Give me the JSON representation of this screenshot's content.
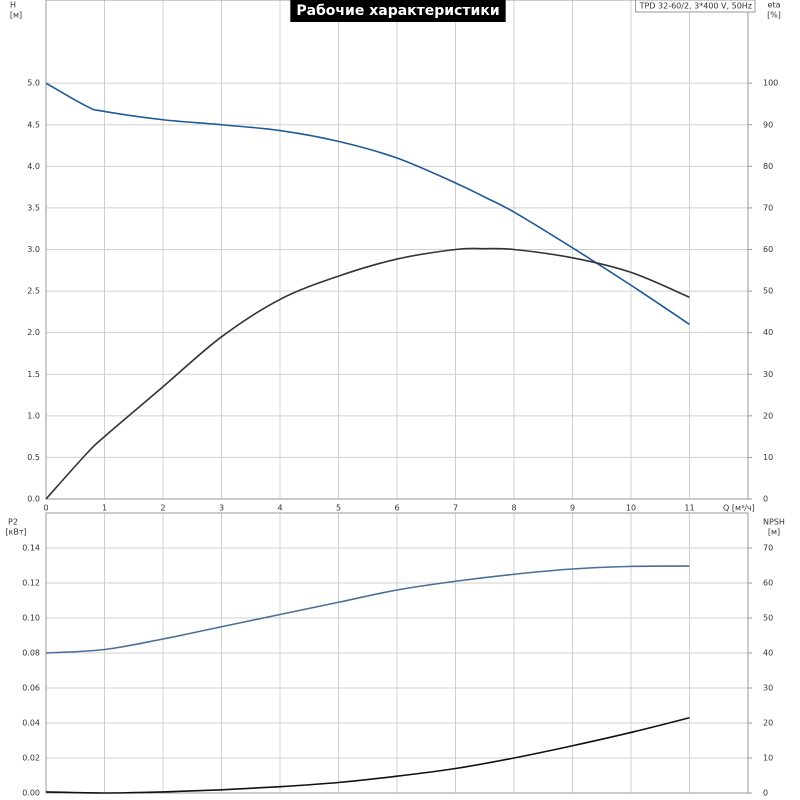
{
  "chart_data": [
    {
      "type": "line",
      "title": "Рабочие характеристики",
      "model": "TPD 32-60/2, 3*400 V, 50Hz",
      "ylabel": "H",
      "yunit": "[м]",
      "y2label": "eta",
      "y2unit": "[%]",
      "xlabel": "Q [м³/ч]",
      "x": [
        0,
        0.7,
        1,
        2,
        3,
        4,
        5,
        6,
        7,
        7.5,
        8,
        9,
        10,
        11
      ],
      "series": [
        {
          "name": "H",
          "color": "#1f5a96",
          "values": [
            5.0,
            4.72,
            4.66,
            4.56,
            4.5,
            4.43,
            4.3,
            4.1,
            3.8,
            3.63,
            3.45,
            3.02,
            2.57,
            2.1
          ]
        },
        {
          "name": "eta",
          "color": "#333333",
          "axis": "y2",
          "values": [
            0,
            11,
            15,
            27,
            39,
            48,
            53.6,
            57.7,
            60,
            60.2,
            60,
            58,
            54.5,
            48.5
          ]
        }
      ],
      "xlim": [
        0,
        12
      ],
      "xticks": [
        0,
        1,
        2,
        3,
        4,
        5,
        6,
        7,
        8,
        9,
        10,
        11
      ],
      "ylim": [
        0,
        6
      ],
      "yticks": [
        {
          "value": 0,
          "label": "0.0"
        },
        {
          "value": 0.5,
          "label": "0.5"
        },
        {
          "value": 1,
          "label": "1.0"
        },
        {
          "value": 1.5,
          "label": "1.5"
        },
        {
          "value": 2,
          "label": "2.0"
        },
        {
          "value": 2.5,
          "label": "2.5"
        },
        {
          "value": 3,
          "label": "3.0"
        },
        {
          "value": 3.5,
          "label": "3.5"
        },
        {
          "value": 4,
          "label": "4.0"
        },
        {
          "value": 4.5,
          "label": "4.5"
        },
        {
          "value": 5,
          "label": "5.0"
        }
      ],
      "y2lim": [
        0,
        120
      ],
      "y2ticks": [
        0,
        10,
        20,
        30,
        40,
        50,
        60,
        70,
        80,
        90,
        100
      ],
      "grid": true
    },
    {
      "type": "line",
      "ylabel": "P2",
      "yunit": "[кВт]",
      "y2label": "NPSH",
      "y2unit": "[м]",
      "x": [
        0,
        1,
        2,
        3,
        4,
        5,
        6,
        7,
        8,
        9,
        10,
        11
      ],
      "series": [
        {
          "name": "P2",
          "color": "#4a6f96",
          "values": [
            0.08,
            0.082,
            0.088,
            0.095,
            0.102,
            0.109,
            0.116,
            0.121,
            0.125,
            0.128,
            0.1295,
            0.1297
          ]
        },
        {
          "name": "NPSH",
          "color": "#111111",
          "axis": "y2",
          "values": [
            0.3,
            0,
            0.3,
            0.9,
            1.8,
            3,
            4.8,
            7,
            10,
            13.5,
            17.3,
            21.5
          ]
        }
      ],
      "xlim": [
        0,
        12
      ],
      "ylim": [
        0,
        0.16
      ],
      "yticks": [
        {
          "value": 0,
          "label": "0.00"
        },
        {
          "value": 0.02,
          "label": "0.02"
        },
        {
          "value": 0.04,
          "label": "0.04"
        },
        {
          "value": 0.06,
          "label": "0.06"
        },
        {
          "value": 0.08,
          "label": "0.08"
        },
        {
          "value": 0.1,
          "label": "0.10"
        },
        {
          "value": 0.12,
          "label": "0.12"
        },
        {
          "value": 0.14,
          "label": "0.14"
        }
      ],
      "y2lim": [
        0,
        80
      ],
      "y2ticks": [
        0,
        10,
        20,
        30,
        40,
        50,
        60,
        70
      ],
      "grid": true
    }
  ]
}
